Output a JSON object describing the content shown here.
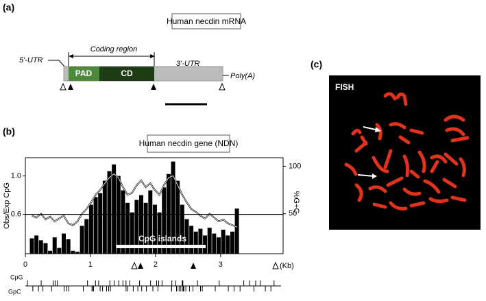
{
  "panel_a": {
    "label": "(a)",
    "title": "Human necdin mRNA",
    "coding": "Coding region",
    "utr5": "5'-UTR",
    "utr3": "3'-UTR",
    "pad": "PAD",
    "cd": "CD",
    "polya": "Poly(A)"
  },
  "panel_b": {
    "label": "(b)",
    "title": "Human necdin gene (NDN)",
    "track1": "CpG",
    "track2": "GpC"
  },
  "panel_c": {
    "label": "(c)",
    "tag": "FISH"
  },
  "chart_data": {
    "type": "bar",
    "y_label": "Obs/Exp CpG",
    "y2_label": "%G+C",
    "x_label": "(Kb)",
    "annotation": "CpG islands",
    "x": [
      0.1,
      0.17,
      0.24,
      0.31,
      0.38,
      0.45,
      0.52,
      0.59,
      0.66,
      0.73,
      0.8,
      0.87,
      0.94,
      1.01,
      1.08,
      1.15,
      1.22,
      1.29,
      1.36,
      1.43,
      1.5,
      1.57,
      1.64,
      1.71,
      1.78,
      1.85,
      1.92,
      1.99,
      2.06,
      2.13,
      2.2,
      2.27,
      2.34,
      2.41,
      2.48,
      2.55,
      2.62,
      2.69,
      2.76,
      2.83,
      2.9,
      2.97,
      3.04,
      3.11,
      3.18,
      3.25
    ],
    "series": [
      {
        "name": "Obs/Exp CpG",
        "color": "#000000",
        "values": [
          0.35,
          0.38,
          0.33,
          0.3,
          0.22,
          0.36,
          0.25,
          0.4,
          0.34,
          0.22,
          0.21,
          0.48,
          0.55,
          0.7,
          0.78,
          0.82,
          0.95,
          1.05,
          1.12,
          1.0,
          0.85,
          0.72,
          0.62,
          0.75,
          0.8,
          0.72,
          0.85,
          0.7,
          0.62,
          0.88,
          1.02,
          1.15,
          0.95,
          0.7,
          0.55,
          0.48,
          0.42,
          0.45,
          0.38,
          0.46,
          0.4,
          0.36,
          0.44,
          0.38,
          0.42,
          0.66
        ]
      },
      {
        "name": "%G+C",
        "color": "#ffffff",
        "axis": "y2",
        "values": [
          48,
          46,
          50,
          44,
          47,
          42,
          45,
          48,
          40,
          38,
          42,
          50,
          55,
          62,
          70,
          75,
          82,
          88,
          92,
          88,
          78,
          70,
          72,
          80,
          85,
          78,
          82,
          75,
          70,
          80,
          88,
          90,
          80,
          70,
          62,
          55,
          52,
          48,
          45,
          50,
          46,
          42,
          44,
          40,
          38,
          36
        ]
      }
    ],
    "xlim": [
      0,
      3.96
    ],
    "xticks": [
      0,
      1,
      2,
      3
    ],
    "ylim": [
      0.19,
      1.19
    ],
    "yticks": [
      0.6,
      {
        "value": 1,
        "label": "1.0"
      }
    ],
    "y2lim": [
      8,
      109
    ],
    "y2ticks": [
      50,
      100
    ]
  }
}
